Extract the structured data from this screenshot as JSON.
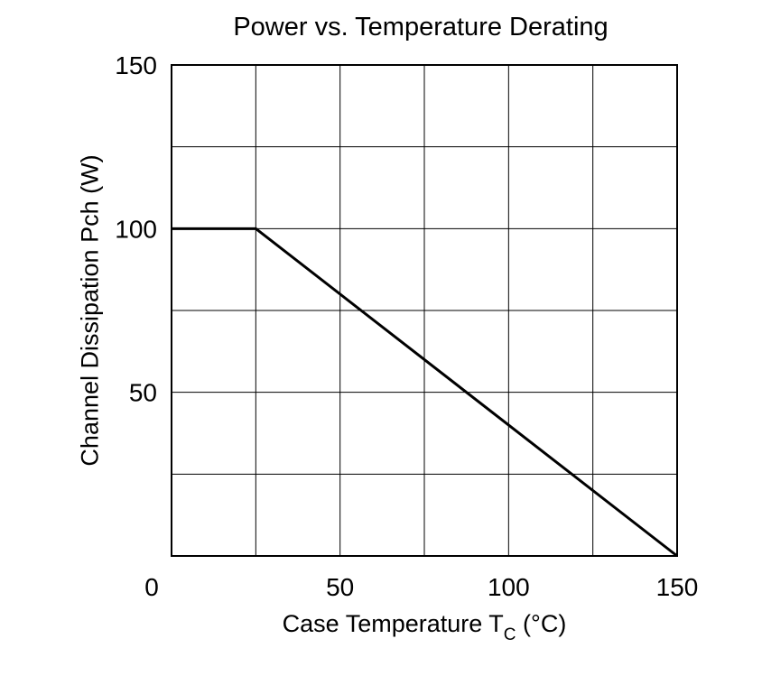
{
  "chart_data": {
    "type": "line",
    "title": "Power vs. Temperature Derating",
    "xlabel": {
      "main": "Case Temperature  T",
      "subscript": "C",
      "unit": "  (°C)"
    },
    "ylabel": "Channel Dissipation  Pch  (W)",
    "xlim": [
      0,
      150
    ],
    "ylim": [
      0,
      150
    ],
    "x_ticks": [
      0,
      50,
      100,
      150
    ],
    "y_ticks": [
      50,
      100,
      150
    ],
    "x_grid": [
      0,
      25,
      50,
      75,
      100,
      125,
      150
    ],
    "y_grid": [
      0,
      25,
      50,
      75,
      100,
      125,
      150
    ],
    "grid": true,
    "series": [
      {
        "x": [
          0,
          25,
          150
        ],
        "y": [
          100,
          100,
          0
        ]
      }
    ],
    "colors": {
      "line": "#000000",
      "grid": "#000000",
      "background": "#ffffff"
    }
  }
}
